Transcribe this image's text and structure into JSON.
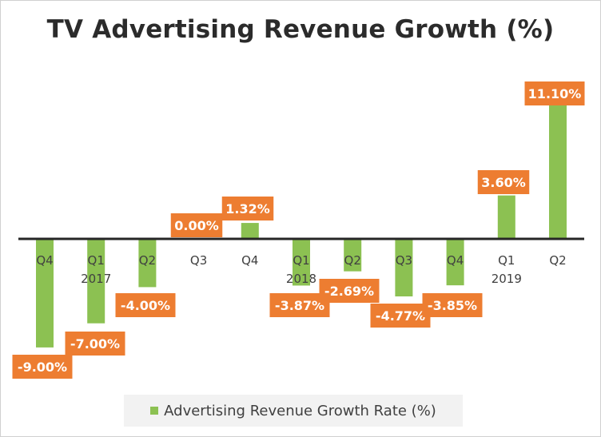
{
  "chart_data": {
    "type": "bar",
    "title": "TV Advertising Revenue Growth (%)",
    "xlabel": "",
    "ylabel": "",
    "categories": [
      "Q4",
      "Q1",
      "Q2",
      "Q3",
      "Q4",
      "Q1",
      "Q2",
      "Q3",
      "Q4",
      "Q1",
      "Q2"
    ],
    "year_labels": [
      "",
      "2017",
      "",
      "",
      "",
      "2018",
      "",
      "",
      "",
      "2019",
      ""
    ],
    "series": [
      {
        "name": "Advertising Revenue Growth Rate (%)",
        "values": [
          -9.0,
          -7.0,
          -4.0,
          0.0,
          1.32,
          -3.87,
          -2.69,
          -4.77,
          -3.85,
          3.6,
          11.1
        ],
        "data_labels": [
          "-9.00%",
          "-7.00%",
          "-4.00%",
          "0.00%",
          "1.32%",
          "-3.87%",
          "-2.69%",
          "-4.77%",
          "-3.85%",
          "3.60%",
          "11.10%"
        ],
        "color": "#8cc152"
      }
    ],
    "ylim": [
      -10,
      12
    ],
    "grid": false,
    "legend_position": "bottom",
    "label_color": "#ed7d31",
    "axis_color": "#262626"
  }
}
